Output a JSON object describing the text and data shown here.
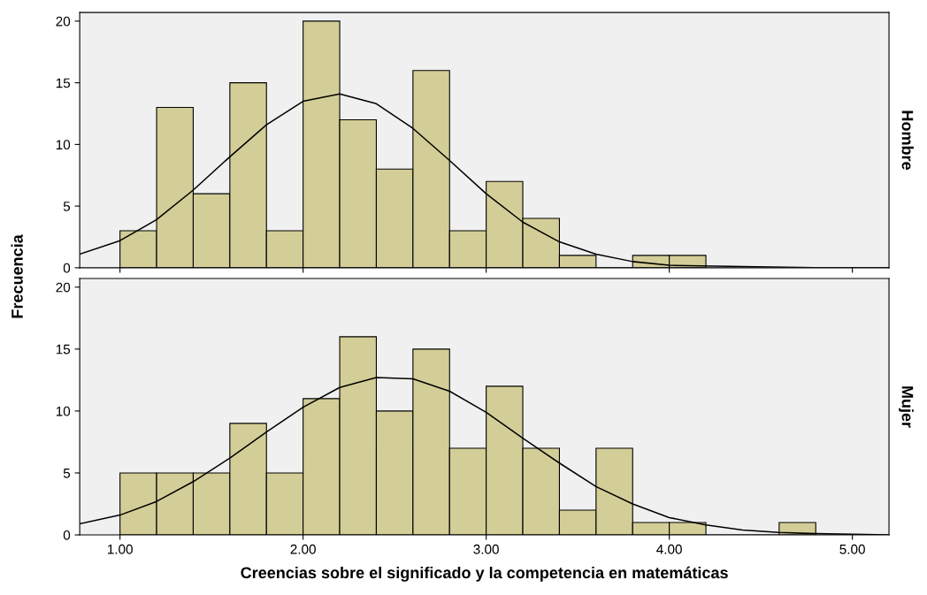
{
  "chart_data": [
    {
      "type": "histogram",
      "ylabel": "Frecuencia",
      "y2label": "Hombre",
      "xlim": [
        0.78,
        5.2
      ],
      "ylim": [
        0,
        20.7
      ],
      "yticks": [
        0,
        5,
        10,
        15,
        20
      ],
      "xticks": [
        1,
        2,
        3,
        4,
        5
      ],
      "tick_labels": "y",
      "grid": false,
      "legend": false,
      "series": [
        {
          "color": "#d3ce97",
          "bins": [
            1.0,
            1.2,
            1.4,
            1.6,
            1.8,
            2.0,
            2.2,
            2.4,
            2.6,
            2.8,
            3.0,
            3.2,
            3.4,
            3.6,
            3.8,
            4.0,
            4.2
          ],
          "values": [
            3,
            13,
            6,
            15,
            3,
            20,
            12,
            8,
            16,
            3,
            7,
            4,
            1,
            0,
            1,
            1
          ]
        },
        {
          "type": "line",
          "color": "#000000",
          "x": [
            0.78,
            1.0,
            1.2,
            1.4,
            1.6,
            1.8,
            2.0,
            2.2,
            2.4,
            2.6,
            2.8,
            3.0,
            3.2,
            3.4,
            3.6,
            3.8,
            4.0,
            4.4,
            4.8,
            5.2
          ],
          "values": [
            1.1,
            2.2,
            3.9,
            6.3,
            9.0,
            11.6,
            13.5,
            14.1,
            13.3,
            11.3,
            8.7,
            6.0,
            3.7,
            2.1,
            1.1,
            0.5,
            0.2,
            0.1,
            0.0,
            0.0
          ]
        }
      ]
    },
    {
      "type": "histogram",
      "xlabel": "Creencias sobre el significado y la competencia en matemáticas",
      "y2label": "Mujer",
      "xlim": [
        0.78,
        5.2
      ],
      "ylim": [
        0,
        20.7
      ],
      "yticks": [
        0,
        5,
        10,
        15,
        20
      ],
      "xticks": [
        {
          "value": 1,
          "label": "1.00"
        },
        {
          "value": 2,
          "label": "2.00"
        },
        {
          "value": 3,
          "label": "3.00"
        },
        {
          "value": 4,
          "label": "4.00"
        },
        {
          "value": 5,
          "label": "5.00"
        }
      ],
      "grid": false,
      "legend": false,
      "series": [
        {
          "color": "#d3ce97",
          "bins": [
            1.0,
            1.2,
            1.4,
            1.6,
            1.8,
            2.0,
            2.2,
            2.4,
            2.6,
            2.8,
            3.0,
            3.2,
            3.4,
            3.6,
            3.8,
            4.0,
            4.2,
            4.4,
            4.6,
            4.8
          ],
          "values": [
            5,
            5,
            5,
            9,
            5,
            11,
            16,
            10,
            15,
            7,
            12,
            7,
            2,
            7,
            1,
            1,
            0,
            0,
            1
          ]
        },
        {
          "type": "line",
          "color": "#000000",
          "x": [
            0.78,
            1.0,
            1.2,
            1.4,
            1.6,
            1.8,
            2.0,
            2.2,
            2.4,
            2.6,
            2.8,
            3.0,
            3.2,
            3.4,
            3.6,
            3.8,
            4.0,
            4.2,
            4.4,
            4.6,
            4.8,
            5.2
          ],
          "values": [
            0.9,
            1.6,
            2.7,
            4.3,
            6.2,
            8.3,
            10.3,
            11.9,
            12.7,
            12.6,
            11.6,
            9.9,
            7.8,
            5.8,
            3.9,
            2.5,
            1.4,
            0.8,
            0.4,
            0.2,
            0.1,
            0.0
          ]
        }
      ]
    }
  ]
}
